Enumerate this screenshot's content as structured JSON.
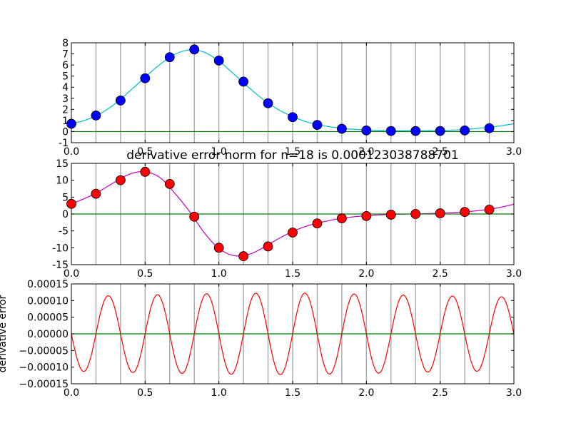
{
  "chart_data": [
    {
      "type": "line",
      "title": "",
      "xlabel": "",
      "ylabel": "",
      "xlim": [
        0.0,
        3.0
      ],
      "ylim": [
        -1,
        8
      ],
      "xticks": [
        "0.0",
        "0.5",
        "1.0",
        "1.5",
        "2.0",
        "2.5",
        "3.0"
      ],
      "yticks": [
        "8",
        "7",
        "6",
        "5",
        "4",
        "3",
        "2",
        "1",
        "0",
        "-1"
      ],
      "grid": "vertical",
      "gridlines_x": [
        0.1667,
        0.3333,
        0.5,
        0.6667,
        0.8333,
        1.0,
        1.1667,
        1.3333,
        1.5,
        1.6667,
        1.8333,
        2.0,
        2.1667,
        2.3333,
        2.5,
        2.6667,
        2.8333
      ],
      "series": [
        {
          "kind": "curve",
          "color": "#00bfbf",
          "x": [
            0.0,
            0.1,
            0.2,
            0.3,
            0.4,
            0.5,
            0.6,
            0.7,
            0.8,
            0.9,
            1.0,
            1.1,
            1.2,
            1.3,
            1.4,
            1.5,
            1.6,
            1.7,
            1.8,
            1.9,
            2.0,
            2.1,
            2.2,
            2.3,
            2.4,
            2.5,
            2.6,
            2.7,
            2.8,
            2.9,
            3.0
          ],
          "y": [
            0.7,
            1.05,
            1.65,
            2.55,
            3.7,
            4.9,
            6.05,
            6.95,
            7.35,
            7.15,
            6.35,
            5.2,
            4.0,
            2.9,
            2.0,
            1.35,
            0.85,
            0.55,
            0.35,
            0.22,
            0.15,
            0.1,
            0.07,
            0.07,
            0.08,
            0.1,
            0.14,
            0.22,
            0.35,
            0.5,
            0.7
          ]
        },
        {
          "kind": "points",
          "color": "#0000ff",
          "x": [
            0.0,
            0.1667,
            0.3333,
            0.5,
            0.6667,
            0.8333,
            1.0,
            1.1667,
            1.3333,
            1.5,
            1.6667,
            1.8333,
            2.0,
            2.1667,
            2.3333,
            2.5,
            2.6667,
            2.8333
          ],
          "y": [
            0.7,
            1.45,
            2.8,
            4.8,
            6.7,
            7.4,
            6.4,
            4.5,
            2.55,
            1.3,
            0.6,
            0.25,
            0.1,
            0.05,
            0.05,
            0.05,
            0.1,
            0.3
          ]
        },
        {
          "kind": "hline",
          "color": "#008000",
          "y": 0
        }
      ]
    },
    {
      "type": "line",
      "title": "derivative error norm for n=18 is 0.000123038788701",
      "xlabel": "",
      "ylabel": "",
      "xlim": [
        0.0,
        3.0
      ],
      "ylim": [
        -15,
        15
      ],
      "xticks": [
        "0.0",
        "0.5",
        "1.0",
        "1.5",
        "2.0",
        "2.5",
        "3.0"
      ],
      "yticks": [
        "15",
        "10",
        "5",
        "0",
        "-5",
        "-10",
        "-15"
      ],
      "grid": "vertical",
      "gridlines_x": [
        0.1667,
        0.3333,
        0.5,
        0.6667,
        0.8333,
        1.0,
        1.1667,
        1.3333,
        1.5,
        1.6667,
        1.8333,
        2.0,
        2.1667,
        2.3333,
        2.5,
        2.6667,
        2.8333
      ],
      "series": [
        {
          "kind": "curve",
          "color": "#bf00bf",
          "x": [
            0.0,
            0.1,
            0.2,
            0.3,
            0.4,
            0.5,
            0.6,
            0.7,
            0.8,
            0.9,
            1.0,
            1.1,
            1.2,
            1.3,
            1.4,
            1.5,
            1.6,
            1.7,
            1.8,
            1.9,
            2.0,
            2.1,
            2.2,
            2.3,
            2.4,
            2.5,
            2.6,
            2.7,
            2.8,
            2.9,
            3.0
          ],
          "y": [
            3.0,
            4.8,
            7.0,
            9.6,
            11.9,
            12.5,
            10.8,
            6.2,
            0.8,
            -5.5,
            -10.2,
            -12.3,
            -12.0,
            -10.0,
            -7.4,
            -5.2,
            -3.5,
            -2.4,
            -1.5,
            -0.9,
            -0.5,
            -0.25,
            -0.1,
            0.0,
            0.1,
            0.25,
            0.45,
            0.75,
            1.2,
            1.9,
            2.9
          ]
        },
        {
          "kind": "points",
          "color": "#ff0000",
          "x": [
            0.0,
            0.1667,
            0.3333,
            0.5,
            0.6667,
            0.8333,
            1.0,
            1.1667,
            1.3333,
            1.5,
            1.6667,
            1.8333,
            2.0,
            2.1667,
            2.3333,
            2.5,
            2.6667,
            2.8333
          ],
          "y": [
            3.0,
            6.0,
            10.0,
            12.5,
            8.9,
            -0.8,
            -10.0,
            -12.5,
            -9.6,
            -5.5,
            -2.8,
            -1.3,
            -0.6,
            -0.2,
            0.0,
            0.2,
            0.6,
            1.3
          ]
        },
        {
          "kind": "hline",
          "color": "#008000",
          "y": 0
        }
      ]
    },
    {
      "type": "line",
      "title": "",
      "xlabel": "",
      "ylabel": "derivative error",
      "xlim": [
        0.0,
        3.0
      ],
      "ylim": [
        -0.00015,
        0.00015
      ],
      "xticks": [
        "0.0",
        "0.5",
        "1.0",
        "1.5",
        "2.0",
        "2.5",
        "3.0"
      ],
      "yticks": [
        "0.00015",
        "0.00010",
        "0.00005",
        "0.00000",
        "−0.00005",
        "−0.00010",
        "−0.00015"
      ],
      "grid": "vertical",
      "gridlines_x": [
        0.1667,
        0.3333,
        0.5,
        0.6667,
        0.8333,
        1.0,
        1.1667,
        1.3333,
        1.5,
        1.6667,
        1.8333,
        2.0,
        2.1667,
        2.3333,
        2.5,
        2.6667,
        2.8333
      ],
      "series": [
        {
          "kind": "oscillation",
          "color": "#ff0000",
          "period": 0.3333,
          "x": [
            0.0,
            0.5,
            1.0,
            1.5,
            2.0,
            2.5,
            3.0
          ],
          "amplitude": [
            0.000112,
            0.000117,
            0.000121,
            0.000123,
            0.000119,
            0.000114,
            0.000111
          ]
        },
        {
          "kind": "hline",
          "color": "#008000",
          "y": 0
        }
      ]
    }
  ]
}
